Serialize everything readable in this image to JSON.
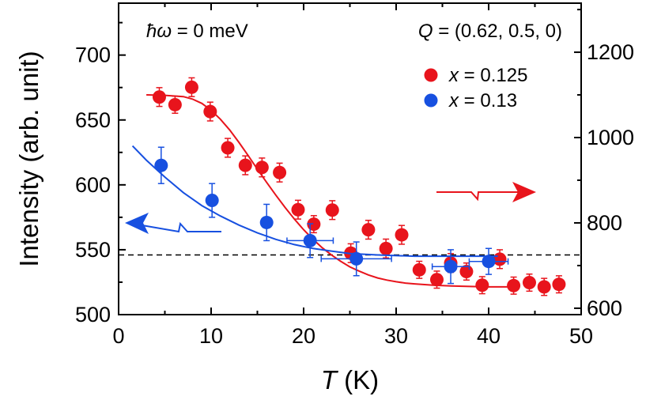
{
  "chart_data": {
    "type": "scatter",
    "annotations": {
      "energy_symbol": "ħω",
      "energy_rest": " = 0 meV",
      "q_symbol": "Q",
      "q_rest": " = (0.62, 0.5, 0)"
    },
    "xlabel": {
      "symbol": "T",
      "unit": " (K)"
    },
    "ylabel_left": "Intensity (arb. unit)",
    "x_ticks": [
      "0",
      "10",
      "20",
      "30",
      "40",
      "50"
    ],
    "y_left_ticks": [
      "500",
      "550",
      "600",
      "650",
      "700"
    ],
    "y_right_ticks": [
      "600",
      "800",
      "1000",
      "1200"
    ],
    "xlim": [
      0,
      50
    ],
    "ylim_left": [
      500,
      740
    ],
    "ylim_right": [
      585,
      1315
    ],
    "baseline_left": 546,
    "grid": false,
    "legend_position": "top-right",
    "series": [
      {
        "name_symbol": "x",
        "name_rest": " = 0.125",
        "color": "#e8141c",
        "axis": "right",
        "points": [
          {
            "x": 4.4,
            "y": 1095,
            "yerr": 22
          },
          {
            "x": 6.1,
            "y": 1077,
            "yerr": 20
          },
          {
            "x": 7.9,
            "y": 1118,
            "yerr": 22
          },
          {
            "x": 9.9,
            "y": 1061,
            "yerr": 22
          },
          {
            "x": 11.8,
            "y": 976,
            "yerr": 22
          },
          {
            "x": 13.7,
            "y": 935,
            "yerr": 22
          },
          {
            "x": 15.5,
            "y": 930,
            "yerr": 22
          },
          {
            "x": 17.4,
            "y": 918,
            "yerr": 22
          },
          {
            "x": 19.4,
            "y": 831,
            "yerr": 22
          },
          {
            "x": 21.1,
            "y": 797,
            "yerr": 20
          },
          {
            "x": 23.1,
            "y": 830,
            "yerr": 22
          },
          {
            "x": 25.1,
            "y": 729,
            "yerr": 22
          },
          {
            "x": 27.0,
            "y": 784,
            "yerr": 22
          },
          {
            "x": 28.9,
            "y": 740,
            "yerr": 22
          },
          {
            "x": 30.6,
            "y": 772,
            "yerr": 22
          },
          {
            "x": 32.5,
            "y": 690,
            "yerr": 20
          },
          {
            "x": 34.4,
            "y": 667,
            "yerr": 20
          },
          {
            "x": 35.9,
            "y": 706,
            "yerr": 22
          },
          {
            "x": 37.6,
            "y": 686,
            "yerr": 20
          },
          {
            "x": 39.3,
            "y": 654,
            "yerr": 20
          },
          {
            "x": 41.2,
            "y": 715,
            "yerr": 22
          },
          {
            "x": 42.7,
            "y": 653,
            "yerr": 20
          },
          {
            "x": 44.4,
            "y": 660,
            "yerr": 20
          },
          {
            "x": 46.0,
            "y": 650,
            "yerr": 20
          },
          {
            "x": 47.6,
            "y": 656,
            "yerr": 20
          }
        ],
        "fit": [
          [
            3.0,
            1100
          ],
          [
            5,
            1099
          ],
          [
            7,
            1096
          ],
          [
            8,
            1090
          ],
          [
            9,
            1080
          ],
          [
            10,
            1064
          ],
          [
            11,
            1043
          ],
          [
            12,
            1018
          ],
          [
            13,
            989
          ],
          [
            14,
            958
          ],
          [
            15,
            926
          ],
          [
            16,
            895
          ],
          [
            17,
            865
          ],
          [
            18,
            836
          ],
          [
            19,
            809
          ],
          [
            20,
            784
          ],
          [
            21,
            762
          ],
          [
            22,
            742
          ],
          [
            23,
            725
          ],
          [
            24,
            710
          ],
          [
            25,
            697
          ],
          [
            26,
            687
          ],
          [
            27,
            678
          ],
          [
            28,
            671
          ],
          [
            29,
            666
          ],
          [
            30,
            662
          ],
          [
            31,
            659
          ],
          [
            32,
            657
          ],
          [
            34,
            654
          ],
          [
            36,
            652
          ],
          [
            38,
            651
          ],
          [
            40,
            650
          ],
          [
            42.5,
            650
          ]
        ]
      },
      {
        "name_symbol": "x",
        "name_rest": " = 0.13",
        "color": "#1750e0",
        "axis": "left",
        "points": [
          {
            "x": 4.6,
            "y": 615,
            "yerr": 14,
            "xerr": 0
          },
          {
            "x": 10.1,
            "y": 588,
            "yerr": 13,
            "xerr": 0
          },
          {
            "x": 16.0,
            "y": 571,
            "yerr": 14,
            "xerr": 0
          },
          {
            "x": 20.7,
            "y": 557,
            "yerr": 13,
            "xerr": 2.5
          },
          {
            "x": 25.7,
            "y": 543,
            "yerr": 13,
            "xerr": 3.8
          },
          {
            "x": 35.9,
            "y": 537,
            "yerr": 13,
            "xerr": 2.0
          },
          {
            "x": 40.0,
            "y": 541,
            "yerr": 10,
            "xerr": 2.1
          }
        ],
        "fit": [
          [
            1.5,
            630
          ],
          [
            3,
            619
          ],
          [
            5,
            606
          ],
          [
            7,
            594
          ],
          [
            9,
            584
          ],
          [
            11,
            576
          ],
          [
            13,
            569
          ],
          [
            15,
            563
          ],
          [
            17,
            558
          ],
          [
            19,
            554
          ],
          [
            21,
            551
          ],
          [
            23,
            549
          ],
          [
            25,
            547
          ],
          [
            28,
            546
          ],
          [
            32,
            545
          ],
          [
            36,
            545
          ],
          [
            41,
            545
          ]
        ]
      }
    ],
    "arrows": [
      {
        "points_to": "left",
        "color": "#1750e0"
      },
      {
        "points_to": "right",
        "color": "#e8141c"
      }
    ]
  }
}
